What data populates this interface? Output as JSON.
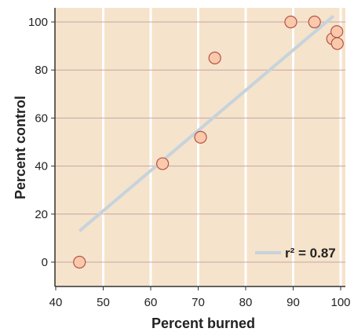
{
  "chart_data": {
    "type": "scatter",
    "xlabel": "Percent burned",
    "ylabel": "Percent control",
    "xlim": [
      40,
      100
    ],
    "ylim": [
      -10,
      105
    ],
    "xticks": [
      40,
      50,
      60,
      70,
      80,
      90,
      100
    ],
    "yticks": [
      0,
      20,
      40,
      60,
      80,
      100
    ],
    "x_grid": "vertical white lines",
    "y_grid": "horizontal mauve lines",
    "points": [
      {
        "x": 45,
        "y": 0
      },
      {
        "x": 62.5,
        "y": 41
      },
      {
        "x": 70.5,
        "y": 52
      },
      {
        "x": 73.5,
        "y": 85
      },
      {
        "x": 89.5,
        "y": 100
      },
      {
        "x": 94.5,
        "y": 100
      },
      {
        "x": 98.3,
        "y": 93
      },
      {
        "x": 99.2,
        "y": 96
      },
      {
        "x": 99.3,
        "y": 91
      }
    ],
    "fit_line": {
      "x": [
        45,
        98.5
      ],
      "y": [
        13,
        102.5
      ]
    },
    "legend": {
      "label": "r² = 0.87",
      "position": "bottom-right"
    },
    "colors": {
      "background": "#f5e3cb",
      "vertical_grid": "#ffffff",
      "horizontal_grid": "#c9a4a8",
      "point_fill": "#f9c9aa",
      "point_stroke": "#b5524a",
      "fit_line": "#c6d3dc",
      "axis": "#333333"
    }
  }
}
